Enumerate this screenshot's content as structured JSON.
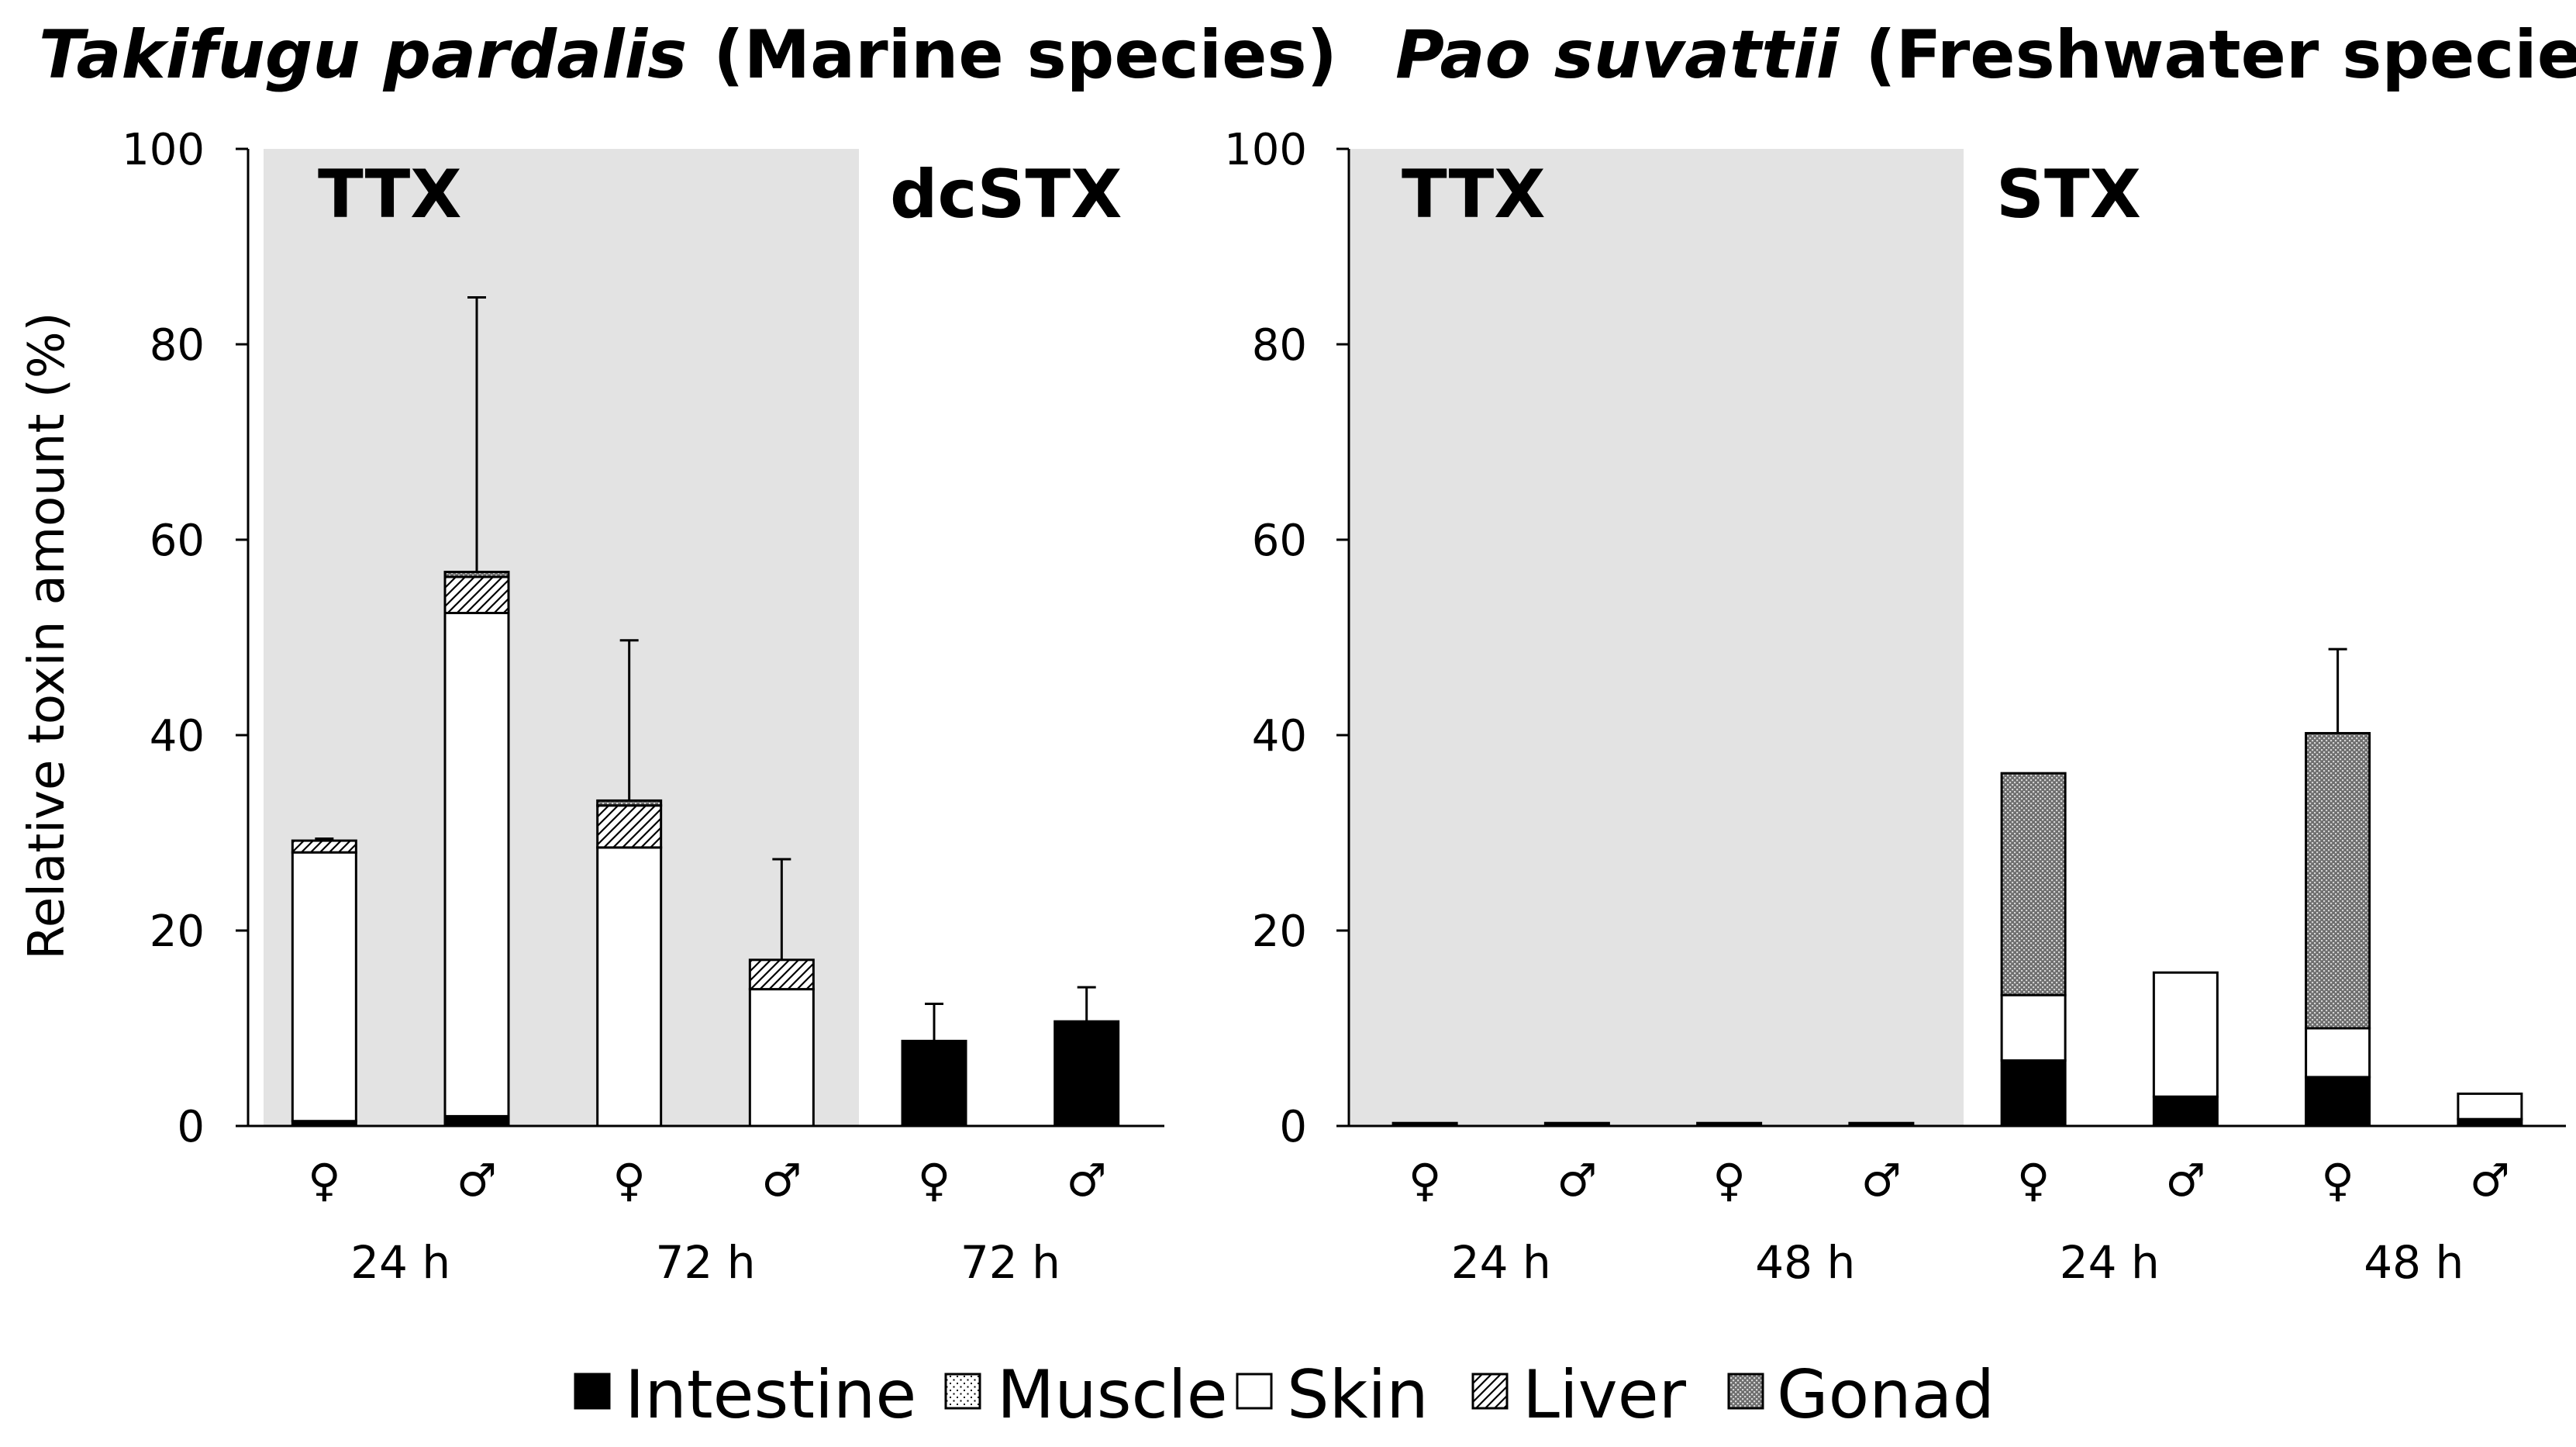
{
  "legend": [
    {
      "key": "intestine",
      "label": "Intestine"
    },
    {
      "key": "muscle",
      "label": "Muscle"
    },
    {
      "key": "skin",
      "label": "Skin"
    },
    {
      "key": "liver",
      "label": "Liver"
    },
    {
      "key": "gonad",
      "label": "Gonad"
    }
  ],
  "chart_data": [
    {
      "type": "bar",
      "stacked": true,
      "title_species": "Takifugu pardalis",
      "title_rest": "(Marine species)",
      "ylabel": "Relative toxin amount (%)",
      "ylim": [
        0,
        100
      ],
      "yticks": [
        0,
        20,
        40,
        60,
        80,
        100
      ],
      "regions": [
        {
          "label": "TTX",
          "shaded": true,
          "from": 0,
          "to": 3
        },
        {
          "label": "dcSTX",
          "shaded": false,
          "from": 4,
          "to": 5
        }
      ],
      "groups": [
        {
          "label": "24 h",
          "from": 0,
          "to": 1
        },
        {
          "label": "72 h",
          "from": 2,
          "to": 3
        },
        {
          "label": "72 h",
          "from": 4,
          "to": 5
        }
      ],
      "categories": [
        "♀",
        "♂",
        "♀",
        "♂",
        "♀",
        "♂"
      ],
      "series": [
        {
          "name": "Intestine",
          "key": "intestine",
          "values": [
            0.5,
            1.0,
            0,
            0,
            8.7,
            10.7
          ]
        },
        {
          "name": "Muscle",
          "key": "muscle",
          "values": [
            0,
            0,
            0,
            0,
            0,
            0
          ]
        },
        {
          "name": "Skin",
          "key": "skin",
          "values": [
            27.5,
            51.5,
            28.5,
            14.0,
            0,
            0
          ]
        },
        {
          "name": "Liver",
          "key": "liver",
          "values": [
            1.2,
            3.7,
            4.3,
            3.0,
            0,
            0
          ]
        },
        {
          "name": "Gonad",
          "key": "gonad",
          "values": [
            0,
            0.5,
            0.5,
            0,
            0,
            0
          ]
        }
      ],
      "error_top": [
        29.4,
        84.8,
        49.7,
        27.3,
        12.5,
        14.2
      ]
    },
    {
      "type": "bar",
      "stacked": true,
      "title_species": "Pao suvattii",
      "title_rest": "(Freshwater species)",
      "ylabel": "",
      "ylim": [
        0,
        100
      ],
      "yticks": [
        0,
        20,
        40,
        60,
        80,
        100
      ],
      "regions": [
        {
          "label": "TTX",
          "shaded": true,
          "from": 0,
          "to": 3
        },
        {
          "label": "STX",
          "shaded": false,
          "from": 4,
          "to": 7
        }
      ],
      "groups": [
        {
          "label": "24 h",
          "from": 0,
          "to": 1
        },
        {
          "label": "48 h",
          "from": 2,
          "to": 3
        },
        {
          "label": "24 h",
          "from": 4,
          "to": 5
        },
        {
          "label": "48 h",
          "from": 6,
          "to": 7
        }
      ],
      "categories": [
        "♀",
        "♂",
        "♀",
        "♂",
        "♀",
        "♂",
        "♀",
        "♂"
      ],
      "series": [
        {
          "name": "Intestine",
          "key": "intestine",
          "values": [
            0.3,
            0.3,
            0.3,
            0.3,
            6.7,
            3.0,
            5.0,
            0.7
          ]
        },
        {
          "name": "Muscle",
          "key": "muscle",
          "values": [
            0,
            0,
            0,
            0,
            0,
            0,
            0,
            0
          ]
        },
        {
          "name": "Skin",
          "key": "skin",
          "values": [
            0,
            0,
            0,
            0,
            6.7,
            12.7,
            5.0,
            2.6
          ]
        },
        {
          "name": "Liver",
          "key": "liver",
          "values": [
            0,
            0,
            0,
            0,
            0,
            0,
            0,
            0
          ]
        },
        {
          "name": "Gonad",
          "key": "gonad",
          "values": [
            0,
            0,
            0,
            0,
            22.7,
            0,
            30.2,
            0
          ]
        }
      ],
      "error_top": [
        null,
        null,
        null,
        null,
        36.1,
        15.7,
        48.8,
        3.3
      ]
    }
  ]
}
